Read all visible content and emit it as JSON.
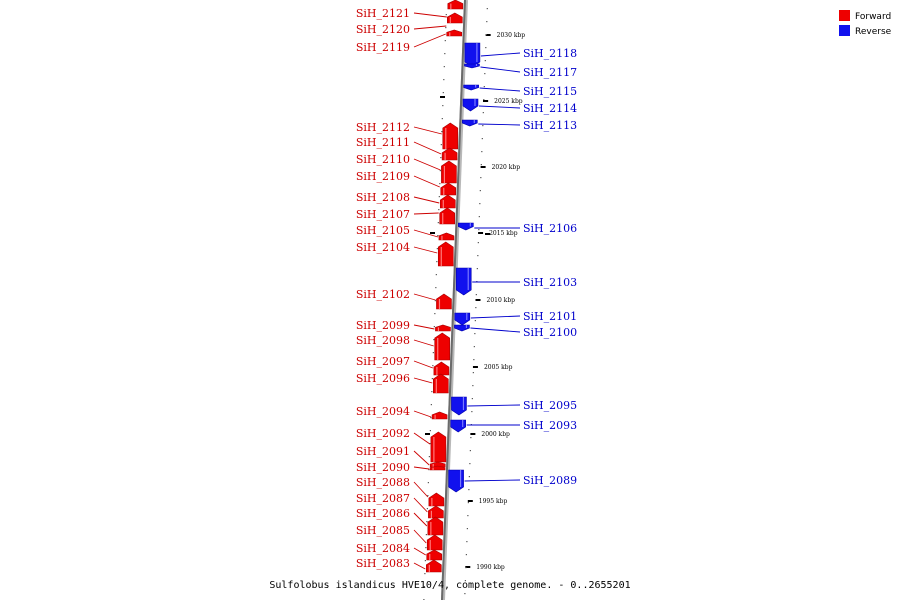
{
  "legend": {
    "forward_label": "Forward",
    "reverse_label": "Reverse",
    "forward_color": "#ee0000",
    "reverse_color": "#1111ee"
  },
  "caption": "Sulfolobus islandicus HVE10/4, complete genome. - 0..2655201",
  "ticks": [
    "2030 kbp",
    "2025 kbp",
    "2020 kbp",
    "2015 kbp",
    "2010 kbp",
    "2005 kbp",
    "2000 kbp",
    "1995 kbp",
    "1990 kbp"
  ],
  "forward_genes": [
    "SiH_2121",
    "SiH_2120",
    "SiH_2119",
    "SiH_2112",
    "SiH_2111",
    "SiH_2110",
    "SiH_2109",
    "SiH_2108",
    "SiH_2107",
    "SiH_2105",
    "SiH_2104",
    "SiH_2102",
    "SiH_2099",
    "SiH_2098",
    "SiH_2097",
    "SiH_2096",
    "SiH_2094",
    "SiH_2092",
    "SiH_2091",
    "SiH_2090",
    "SiH_2088",
    "SiH_2087",
    "SiH_2086",
    "SiH_2085",
    "SiH_2084",
    "SiH_2083"
  ],
  "reverse_genes": [
    "SiH_2118",
    "SiH_2117",
    "SiH_2115",
    "SiH_2114",
    "SiH_2113",
    "SiH_2106",
    "SiH_2103",
    "SiH_2101",
    "SiH_2100",
    "SiH_2095",
    "SiH_2093",
    "SiH_2089"
  ]
}
